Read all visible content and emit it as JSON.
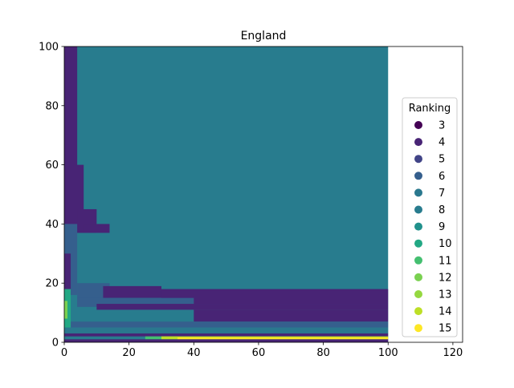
{
  "chart_data": {
    "type": "scatter",
    "title": "England",
    "xlabel": "",
    "ylabel": "",
    "xlim": [
      0,
      123
    ],
    "ylim": [
      0,
      100
    ],
    "x_ticks": [
      0,
      20,
      40,
      60,
      80,
      100,
      120
    ],
    "y_ticks": [
      0,
      20,
      40,
      60,
      80,
      100
    ],
    "grid": false,
    "legend": {
      "title": "Ranking",
      "placement": "center-right",
      "entries": [
        {
          "label": "3",
          "color": "#440154"
        },
        {
          "label": "4",
          "color": "#482475"
        },
        {
          "label": "5",
          "color": "#414487"
        },
        {
          "label": "6",
          "color": "#355f8d"
        },
        {
          "label": "7",
          "color": "#2a788e"
        },
        {
          "label": "8",
          "color": "#287c8e"
        },
        {
          "label": "9",
          "color": "#21918c"
        },
        {
          "label": "10",
          "color": "#22a884"
        },
        {
          "label": "11",
          "color": "#44bf70"
        },
        {
          "label": "12",
          "color": "#7ad151"
        },
        {
          "label": "13",
          "color": "#95d840"
        },
        {
          "label": "14",
          "color": "#bddf26"
        },
        {
          "label": "15",
          "color": "#fde725"
        }
      ]
    },
    "regions": [
      {
        "ranking": "8",
        "color": "#287c8e",
        "x": [
          0,
          100
        ],
        "y": [
          0,
          100
        ]
      },
      {
        "ranking": "4",
        "color": "#482475",
        "x": [
          0,
          4
        ],
        "y": [
          40,
          100
        ]
      },
      {
        "ranking": "4",
        "color": "#482475",
        "x": [
          0,
          6
        ],
        "y": [
          37,
          60
        ]
      },
      {
        "ranking": "4",
        "color": "#482475",
        "x": [
          4,
          10
        ],
        "y": [
          37,
          45
        ]
      },
      {
        "ranking": "4",
        "color": "#482475",
        "x": [
          6,
          14
        ],
        "y": [
          37,
          40
        ]
      },
      {
        "ranking": "6",
        "color": "#355f8d",
        "x": [
          0,
          4
        ],
        "y": [
          16,
          40
        ]
      },
      {
        "ranking": "4",
        "color": "#482475",
        "x": [
          0,
          2
        ],
        "y": [
          16,
          30
        ]
      },
      {
        "ranking": "6",
        "color": "#355f8d",
        "x": [
          4,
          14
        ],
        "y": [
          12,
          20
        ]
      },
      {
        "ranking": "4",
        "color": "#482475",
        "x": [
          12,
          30
        ],
        "y": [
          15,
          19
        ]
      },
      {
        "ranking": "4",
        "color": "#482475",
        "x": [
          30,
          100
        ],
        "y": [
          13,
          18
        ]
      },
      {
        "ranking": "6",
        "color": "#355f8d",
        "x": [
          4,
          40
        ],
        "y": [
          12,
          15
        ]
      },
      {
        "ranking": "4",
        "color": "#482475",
        "x": [
          10,
          100
        ],
        "y": [
          11,
          13
        ]
      },
      {
        "ranking": "4",
        "color": "#482475",
        "x": [
          40,
          100
        ],
        "y": [
          7,
          11
        ]
      },
      {
        "ranking": "6",
        "color": "#355f8d",
        "x": [
          0,
          100
        ],
        "y": [
          5,
          7
        ]
      },
      {
        "ranking": "7",
        "color": "#2a788e",
        "x": [
          0,
          100
        ],
        "y": [
          3,
          5
        ]
      },
      {
        "ranking": "4",
        "color": "#482475",
        "x": [
          0,
          100
        ],
        "y": [
          2,
          3
        ]
      },
      {
        "ranking": "10",
        "color": "#22a884",
        "x": [
          0,
          2
        ],
        "y": [
          5,
          18
        ]
      },
      {
        "ranking": "12",
        "color": "#7ad151",
        "x": [
          0,
          1
        ],
        "y": [
          8,
          14
        ]
      },
      {
        "ranking": "11",
        "color": "#44bf70",
        "x": [
          25,
          35
        ],
        "y": [
          1,
          2
        ]
      },
      {
        "ranking": "14",
        "color": "#bddf26",
        "x": [
          30,
          100
        ],
        "y": [
          1,
          2
        ]
      },
      {
        "ranking": "15",
        "color": "#fde725",
        "x": [
          35,
          100
        ],
        "y": [
          1,
          1.7
        ]
      },
      {
        "ranking": "4",
        "color": "#482475",
        "x": [
          0,
          100
        ],
        "y": [
          0,
          1
        ]
      }
    ]
  }
}
